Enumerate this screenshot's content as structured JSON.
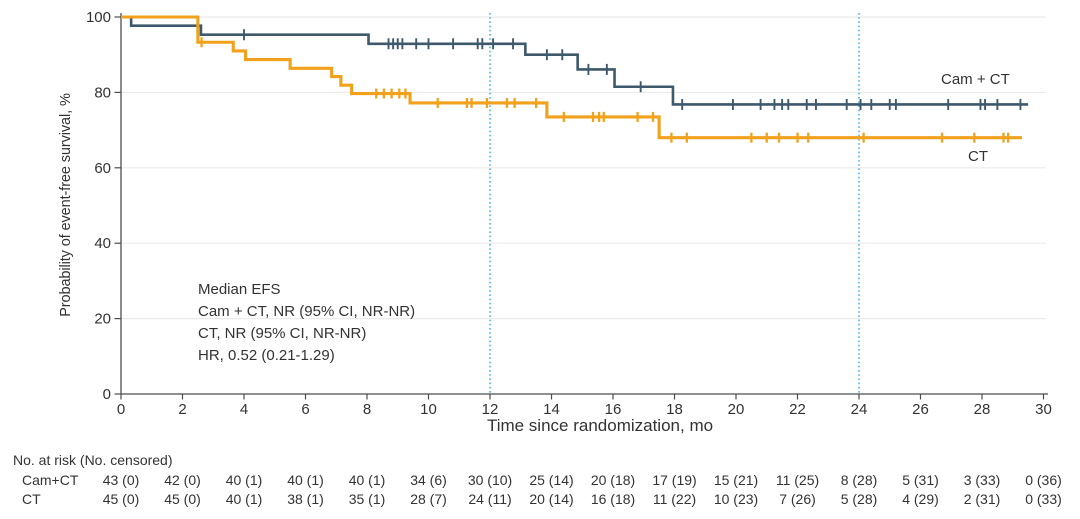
{
  "figure": {
    "y_axis_title": "Probability of event-free survival, %",
    "x_axis_title": "Time since randomization, mo",
    "series_labels": {
      "cam_ct": "Cam + CT",
      "ct": "CT"
    },
    "annotation": {
      "lines": [
        "Median EFS",
        "Cam + CT, NR (95% CI, NR-NR)",
        "CT, NR (95% CI, NR-NR)",
        "HR, 0.52 (0.21-1.29)"
      ]
    }
  },
  "chart_data": {
    "type": "line",
    "subtype": "kaplan-meier-step-curves",
    "title": "",
    "xlabel": "Time since randomization, mo",
    "ylabel": "Probability of event-free survival, %",
    "xlim": [
      0,
      30
    ],
    "ylim": [
      0,
      100
    ],
    "x_ticks": [
      0,
      2,
      4,
      6,
      8,
      10,
      12,
      14,
      16,
      18,
      20,
      22,
      24,
      26,
      28,
      30
    ],
    "y_ticks": [
      0,
      20,
      40,
      60,
      80,
      100
    ],
    "reference_lines_x": [
      12,
      24
    ],
    "grid": "horizontal",
    "legend_position": "on-curve-right",
    "colors": {
      "cam_ct": "#3D596B",
      "ct": "#F1A11B",
      "reference": "#45B5E8",
      "grid": "#EBEBEB",
      "axis": "#4D4D4D",
      "text": "#333333"
    },
    "series": [
      {
        "name": "Cam + CT",
        "color": "#3D596B",
        "width": 2.6,
        "censor_halflen": 5.5,
        "censor_width": 1.9,
        "start": [
          0,
          100
        ],
        "events": [
          [
            0.33,
            97.7
          ],
          [
            2.6,
            95.3
          ],
          [
            8.05,
            92.9
          ],
          [
            13.15,
            90.0
          ],
          [
            14.85,
            86.1
          ],
          [
            16.05,
            81.5
          ],
          [
            17.95,
            76.8
          ]
        ],
        "end": 29.5,
        "censors": [
          [
            4.0,
            95.3
          ],
          [
            8.7,
            92.9
          ],
          [
            8.85,
            92.9
          ],
          [
            9.0,
            92.9
          ],
          [
            9.15,
            92.9
          ],
          [
            9.6,
            92.9
          ],
          [
            10.0,
            92.9
          ],
          [
            10.8,
            92.9
          ],
          [
            11.6,
            92.9
          ],
          [
            11.75,
            92.9
          ],
          [
            12.1,
            92.9
          ],
          [
            12.75,
            92.9
          ],
          [
            13.85,
            90.0
          ],
          [
            14.35,
            90.0
          ],
          [
            15.2,
            86.1
          ],
          [
            15.8,
            86.1
          ],
          [
            16.9,
            81.5
          ],
          [
            18.25,
            76.8
          ],
          [
            19.9,
            76.8
          ],
          [
            20.8,
            76.8
          ],
          [
            21.25,
            76.8
          ],
          [
            21.5,
            76.8
          ],
          [
            21.7,
            76.8
          ],
          [
            22.3,
            76.8
          ],
          [
            22.6,
            76.8
          ],
          [
            23.6,
            76.8
          ],
          [
            24.05,
            76.8
          ],
          [
            24.4,
            76.8
          ],
          [
            25.0,
            76.8
          ],
          [
            25.2,
            76.8
          ],
          [
            26.9,
            76.8
          ],
          [
            27.95,
            76.8
          ],
          [
            28.1,
            76.8
          ],
          [
            28.5,
            76.8
          ],
          [
            29.25,
            76.8
          ]
        ]
      },
      {
        "name": "CT",
        "color": "#F1A11B",
        "width": 3.1,
        "censor_halflen": 5,
        "censor_width": 2.3,
        "start": [
          0,
          100
        ],
        "events": [
          [
            2.5,
            93.3
          ],
          [
            3.65,
            91.0
          ],
          [
            4.05,
            88.7
          ],
          [
            5.5,
            86.4
          ],
          [
            6.85,
            84.2
          ],
          [
            7.15,
            81.9
          ],
          [
            7.5,
            79.7
          ],
          [
            9.4,
            77.2
          ],
          [
            13.85,
            73.5
          ],
          [
            17.5,
            68.0
          ]
        ],
        "end": 29.3,
        "censors": [
          [
            2.62,
            93.3
          ],
          [
            8.3,
            79.7
          ],
          [
            8.55,
            79.7
          ],
          [
            8.8,
            79.7
          ],
          [
            9.05,
            79.7
          ],
          [
            9.25,
            79.7
          ],
          [
            10.3,
            77.2
          ],
          [
            11.25,
            77.2
          ],
          [
            11.4,
            77.2
          ],
          [
            11.9,
            77.2
          ],
          [
            12.55,
            77.2
          ],
          [
            12.8,
            77.2
          ],
          [
            13.5,
            77.2
          ],
          [
            14.4,
            73.5
          ],
          [
            15.35,
            73.5
          ],
          [
            15.55,
            73.5
          ],
          [
            15.7,
            73.5
          ],
          [
            16.8,
            73.5
          ],
          [
            17.3,
            73.5
          ],
          [
            17.9,
            68.0
          ],
          [
            18.4,
            68.0
          ],
          [
            20.5,
            68.0
          ],
          [
            21.0,
            68.0
          ],
          [
            21.4,
            68.0
          ],
          [
            22.0,
            68.0
          ],
          [
            22.35,
            68.0
          ],
          [
            24.15,
            68.0
          ],
          [
            26.7,
            68.0
          ],
          [
            27.75,
            68.0
          ],
          [
            28.7,
            68.0
          ],
          [
            28.85,
            68.0
          ]
        ]
      }
    ]
  },
  "risk_table": {
    "header": "No. at risk (No. censored)",
    "time_points": [
      0,
      2,
      4,
      6,
      8,
      10,
      12,
      14,
      16,
      18,
      20,
      22,
      24,
      26,
      28,
      30
    ],
    "rows": [
      {
        "label": "Cam+CT",
        "values": [
          "43 (0)",
          "42 (0)",
          "40 (1)",
          "40 (1)",
          "40 (1)",
          "34 (6)",
          "30 (10)",
          "25 (14)",
          "20 (18)",
          "17 (19)",
          "15 (21)",
          "11 (25)",
          "8 (28)",
          "5 (31)",
          "3 (33)",
          "0 (36)"
        ]
      },
      {
        "label": "CT",
        "values": [
          "45 (0)",
          "45 (0)",
          "40 (1)",
          "38 (1)",
          "35 (1)",
          "28 (7)",
          "24 (11)",
          "20 (14)",
          "16 (18)",
          "11 (22)",
          "10 (23)",
          "7 (26)",
          "5 (28)",
          "4 (29)",
          "2 (31)",
          "0 (33)"
        ]
      }
    ]
  }
}
